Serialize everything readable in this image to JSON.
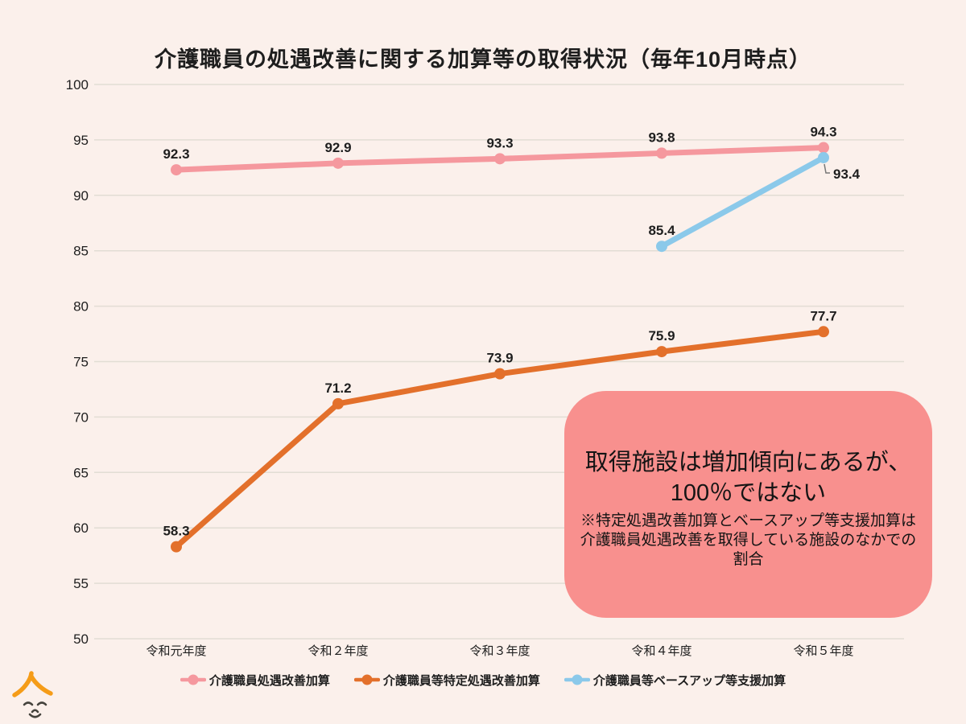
{
  "title": "介護職員の処遇改善に関する加算等の取得状況（毎年10月時点）",
  "chart_data": {
    "type": "line",
    "title": "介護職員の処遇改善に関する加算等の取得状況（毎年10月時点）",
    "categories": [
      "令和元年度",
      "令和２年度",
      "令和３年度",
      "令和４年度",
      "令和５年度"
    ],
    "series": [
      {
        "name": "介護職員処遇改善加算",
        "color": "#F5989E",
        "values": [
          92.3,
          92.9,
          93.3,
          93.8,
          94.3
        ]
      },
      {
        "name": "介護職員等特定処遇改善加算",
        "color": "#E3702B",
        "values": [
          58.3,
          71.2,
          73.9,
          75.9,
          77.7
        ]
      },
      {
        "name": "介護職員等ベースアップ等支援加算",
        "color": "#8BC9EA",
        "values": [
          null,
          null,
          null,
          85.4,
          93.4
        ],
        "label_positions": [
          null,
          null,
          null,
          "above",
          "elbow-right"
        ]
      }
    ],
    "xlabel": "",
    "ylabel": "",
    "ylim": [
      50,
      100
    ],
    "ytick_step": 5,
    "yticks": [
      "50",
      "55",
      "60",
      "65",
      "70",
      "75",
      "80",
      "85",
      "90",
      "95",
      "100"
    ],
    "grid": true,
    "legend_position": "bottom"
  },
  "annotation": {
    "line1": "取得施設は増加傾向にあるが、",
    "line2": "100％ではない",
    "note": "※特定処遇改善加算とベースアップ等支援加算は介護職員処遇改善を取得している施設のなかでの割合"
  },
  "colors": {
    "background": "#FBF0EB",
    "grid": "#E2DDD4",
    "text": "#1E1E1E",
    "annotation_bg": "#F8908E",
    "leader_line": "#777777",
    "logo_orange": "#F59C18",
    "logo_face": "#45433D"
  },
  "logo_icon": "smiling-face-logo"
}
